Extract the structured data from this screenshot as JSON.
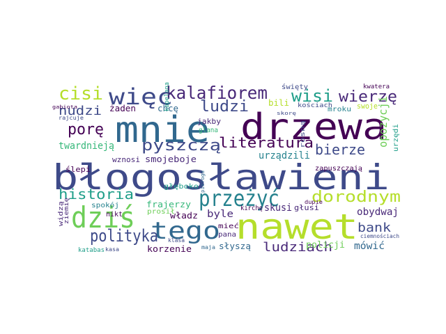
{
  "palette": {
    "purple": "#440154",
    "violet": "#482878",
    "indigo": "#3e4a89",
    "blue": "#31688e",
    "teal": "#26828e",
    "green": "#1f9e89",
    "jade": "#35b779",
    "lime": "#6ece58",
    "yellowgreen": "#b5de2b"
  },
  "words": [
    {
      "text": "błogosławieni",
      "color": "#3e4a89"
    },
    {
      "text": "drzewa",
      "color": "#440154"
    },
    {
      "text": "mnie",
      "color": "#31688e"
    },
    {
      "text": "nawet",
      "color": "#b5de2b"
    },
    {
      "text": "dziś",
      "color": "#6ece58"
    },
    {
      "text": "tego",
      "color": "#31688e"
    },
    {
      "text": "przeżyć",
      "color": "#26828e"
    },
    {
      "text": "więc",
      "color": "#3e4a89"
    },
    {
      "text": "kalafiorem",
      "color": "#482878"
    },
    {
      "text": "cisi",
      "color": "#b5de2b"
    },
    {
      "text": "wisi",
      "color": "#1f9e89"
    },
    {
      "text": "wierzę",
      "color": "#482878"
    },
    {
      "text": "nudzi",
      "color": "#3e4a89"
    },
    {
      "text": "ludzi",
      "color": "#3e4a89"
    },
    {
      "text": "porę",
      "color": "#440154"
    },
    {
      "text": "pyszczą",
      "color": "#3e4a89"
    },
    {
      "text": "literatura",
      "color": "#440154"
    },
    {
      "text": "bierze",
      "color": "#3e4a89"
    },
    {
      "text": "polityka",
      "color": "#3e4a89"
    },
    {
      "text": "historia",
      "color": "#1f9e89"
    },
    {
      "text": "dorodnym",
      "color": "#b5de2b"
    },
    {
      "text": "bank",
      "color": "#3e4a89"
    },
    {
      "text": "ludziach",
      "color": "#482878"
    },
    {
      "text": "twardnieją",
      "color": "#35b779"
    },
    {
      "text": "urządzili",
      "color": "#26828e"
    },
    {
      "text": "opozycji",
      "color": "#6ece58"
    },
    {
      "text": "żaden",
      "color": "#440154"
    },
    {
      "text": "chcę",
      "color": "#31688e"
    },
    {
      "text": "bili",
      "color": "#b5de2b"
    },
    {
      "text": "kościach",
      "color": "#3e4a89"
    },
    {
      "text": "mroku",
      "color": "#26828e"
    },
    {
      "text": "swoje",
      "color": "#b5de2b"
    },
    {
      "text": "święty",
      "color": "#3e4a89"
    },
    {
      "text": "kwatera",
      "color": "#440154"
    },
    {
      "text": "frajerzy",
      "color": "#35b779"
    },
    {
      "text": "byle",
      "color": "#482878"
    },
    {
      "text": "władz",
      "color": "#440154"
    },
    {
      "text": "skusi",
      "color": "#482878"
    },
    {
      "text": "głusi",
      "color": "#482878"
    },
    {
      "text": "obydwaj",
      "color": "#482878"
    },
    {
      "text": "mówić",
      "color": "#31688e"
    },
    {
      "text": "policji",
      "color": "#6ece58"
    },
    {
      "text": "słyszą",
      "color": "#31688e"
    },
    {
      "text": "korzenie",
      "color": "#440154"
    },
    {
      "text": "katabas",
      "color": "#1f9e89"
    },
    {
      "text": "kasa",
      "color": "#3e4a89"
    },
    {
      "text": "zapuszczają",
      "color": "#440154"
    },
    {
      "text": "ciemnościach",
      "color": "#3e4a89"
    },
    {
      "text": "wznosi",
      "color": "#482878"
    },
    {
      "text": "ślepi",
      "color": "#440154"
    },
    {
      "text": "głęboko",
      "color": "#1f9e89"
    },
    {
      "text": "spokój",
      "color": "#26828e"
    },
    {
      "text": "prosił",
      "color": "#6ece58"
    },
    {
      "text": "mieć",
      "color": "#440154"
    },
    {
      "text": "pana",
      "color": "#482878"
    },
    {
      "text": "kirchę",
      "color": "#440154"
    },
    {
      "text": "klasa",
      "color": "#3e4a89"
    },
    {
      "text": "rosną",
      "color": "#3e4a89"
    },
    {
      "text": "jakby",
      "color": "#482878"
    },
    {
      "text": "glana",
      "color": "#35b779"
    },
    {
      "text": "kapelana",
      "color": "#1f9e89"
    },
    {
      "text": "widzą",
      "color": "#482878"
    },
    {
      "text": "ziemię",
      "color": "#482878"
    },
    {
      "text": "nikt",
      "color": "#440154"
    },
    {
      "text": "gabiota",
      "color": "#440154"
    },
    {
      "text": "rajcuje",
      "color": "#3e4a89"
    },
    {
      "text": "dupie",
      "color": "#440154"
    },
    {
      "text": "skorę",
      "color": "#3e4a89"
    },
    {
      "text": "smojeboje",
      "color": "#482878"
    },
    {
      "text": "maja",
      "color": "#31688e"
    },
    {
      "text": "pieroga",
      "color": "#31688e"
    },
    {
      "text": "urzędi",
      "color": "#1f9e89"
    }
  ]
}
